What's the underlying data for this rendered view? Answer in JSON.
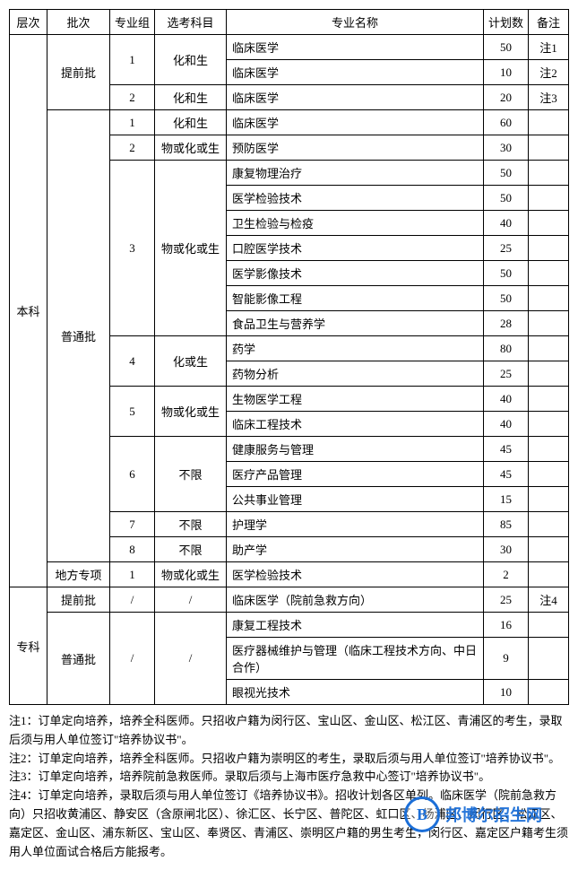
{
  "headers": {
    "level": "层次",
    "batch": "批次",
    "group": "专业组",
    "subject": "选考科目",
    "major": "专业名称",
    "plan": "计划数",
    "note": "备注"
  },
  "levels": {
    "benke": "本科",
    "zhuanke": "专科"
  },
  "batches": {
    "tiqian": "提前批",
    "putong": "普通批",
    "difang": "地方专项"
  },
  "subjects": {
    "hua_he_sheng": "化和生",
    "wu_huo_hua_huo_sheng": "物或化或生",
    "hua_huo_sheng": "化或生",
    "buxian": "不限",
    "slash": "/"
  },
  "rows": [
    {
      "major": "临床医学",
      "plan": "50",
      "note": "注1"
    },
    {
      "major": "临床医学",
      "plan": "10",
      "note": "注2"
    },
    {
      "major": "临床医学",
      "plan": "20",
      "note": "注3"
    },
    {
      "major": "临床医学",
      "plan": "60",
      "note": ""
    },
    {
      "major": "预防医学",
      "plan": "30",
      "note": ""
    },
    {
      "major": "康复物理治疗",
      "plan": "50",
      "note": ""
    },
    {
      "major": "医学检验技术",
      "plan": "50",
      "note": ""
    },
    {
      "major": "卫生检验与检疫",
      "plan": "40",
      "note": ""
    },
    {
      "major": "口腔医学技术",
      "plan": "25",
      "note": ""
    },
    {
      "major": "医学影像技术",
      "plan": "50",
      "note": ""
    },
    {
      "major": "智能影像工程",
      "plan": "50",
      "note": ""
    },
    {
      "major": "食品卫生与营养学",
      "plan": "28",
      "note": ""
    },
    {
      "major": "药学",
      "plan": "80",
      "note": ""
    },
    {
      "major": "药物分析",
      "plan": "25",
      "note": ""
    },
    {
      "major": "生物医学工程",
      "plan": "40",
      "note": ""
    },
    {
      "major": "临床工程技术",
      "plan": "40",
      "note": ""
    },
    {
      "major": "健康服务与管理",
      "plan": "45",
      "note": ""
    },
    {
      "major": "医疗产品管理",
      "plan": "45",
      "note": ""
    },
    {
      "major": "公共事业管理",
      "plan": "15",
      "note": ""
    },
    {
      "major": "护理学",
      "plan": "85",
      "note": ""
    },
    {
      "major": "助产学",
      "plan": "30",
      "note": ""
    },
    {
      "major": "医学检验技术",
      "plan": "2",
      "note": ""
    },
    {
      "major": "临床医学（院前急救方向）",
      "plan": "25",
      "note": "注4"
    },
    {
      "major": "康复工程技术",
      "plan": "16",
      "note": ""
    },
    {
      "major": "医疗器械维护与管理（临床工程技术方向、中日合作）",
      "plan": "9",
      "note": ""
    },
    {
      "major": "眼视光技术",
      "plan": "10",
      "note": ""
    }
  ],
  "groups": {
    "g1": "1",
    "g2": "2",
    "g3": "3",
    "g4": "4",
    "g5": "5",
    "g6": "6",
    "g7": "7",
    "g8": "8"
  },
  "notes": {
    "n1": "注1：订单定向培养，培养全科医师。只招收户籍为闵行区、宝山区、金山区、松江区、青浦区的考生，录取后须与用人单位签订\"培养协议书\"。",
    "n2": "注2：订单定向培养，培养全科医师。只招收户籍为崇明区的考生，录取后须与用人单位签订\"培养协议书\"。",
    "n3": "注3：订单定向培养，培养院前急救医师。录取后须与上海市医疗急救中心签订\"培养协议书\"。",
    "n4": "注4：订单定向培养，录取后须与用人单位签订《培养协议书》。招收计划各区单列。临床医学（院前急救方向）只招收黄浦区、静安区（含原闸北区）、徐汇区、长宁区、普陀区、虹口区、杨浦区、闵行区、松江区、嘉定区、金山区、浦东新区、宝山区、奉贤区、青浦区、崇明区户籍的男生考生，闵行区、嘉定区户籍考生须用人单位面试合格后方能报考。"
  },
  "watermark": {
    "letter": "B",
    "text": "邦博尔招生网"
  },
  "style": {
    "background": "#ffffff",
    "text_color": "#000000",
    "border_color": "#000000",
    "watermark_color": "#1c6fd8",
    "base_font_size": 13
  }
}
